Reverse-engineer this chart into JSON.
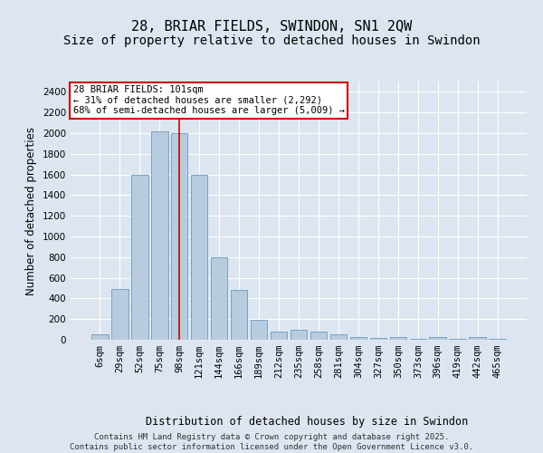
{
  "title": "28, BRIAR FIELDS, SWINDON, SN1 2QW",
  "subtitle": "Size of property relative to detached houses in Swindon",
  "xlabel": "Distribution of detached houses by size in Swindon",
  "ylabel": "Number of detached properties",
  "categories": [
    "6sqm",
    "29sqm",
    "52sqm",
    "75sqm",
    "98sqm",
    "121sqm",
    "144sqm",
    "166sqm",
    "189sqm",
    "212sqm",
    "235sqm",
    "258sqm",
    "281sqm",
    "304sqm",
    "327sqm",
    "350sqm",
    "373sqm",
    "396sqm",
    "419sqm",
    "442sqm",
    "465sqm"
  ],
  "values": [
    50,
    490,
    1600,
    2020,
    2000,
    1600,
    800,
    480,
    195,
    75,
    100,
    75,
    55,
    30,
    15,
    30,
    10,
    25,
    5,
    30,
    5
  ],
  "bar_color": "#b8ccdf",
  "bar_edge_color": "#6a9cbf",
  "ylim": [
    0,
    2500
  ],
  "yticks": [
    0,
    200,
    400,
    600,
    800,
    1000,
    1200,
    1400,
    1600,
    1800,
    2000,
    2200,
    2400
  ],
  "red_line_index": 4,
  "red_line_color": "#cc0000",
  "annotation_text": "28 BRIAR FIELDS: 101sqm\n← 31% of detached houses are smaller (2,292)\n68% of semi-detached houses are larger (5,009) →",
  "annotation_box_facecolor": "#ffffff",
  "annotation_box_edgecolor": "#cc0000",
  "footer_text": "Contains HM Land Registry data © Crown copyright and database right 2025.\nContains public sector information licensed under the Open Government Licence v3.0.",
  "bg_color": "#dde6f0",
  "plot_bg_color": "#dde6f0",
  "grid_color": "#ffffff",
  "title_fontsize": 11,
  "subtitle_fontsize": 10,
  "axis_label_fontsize": 8.5,
  "tick_fontsize": 7.5,
  "annotation_fontsize": 7.5,
  "footer_fontsize": 6.5
}
